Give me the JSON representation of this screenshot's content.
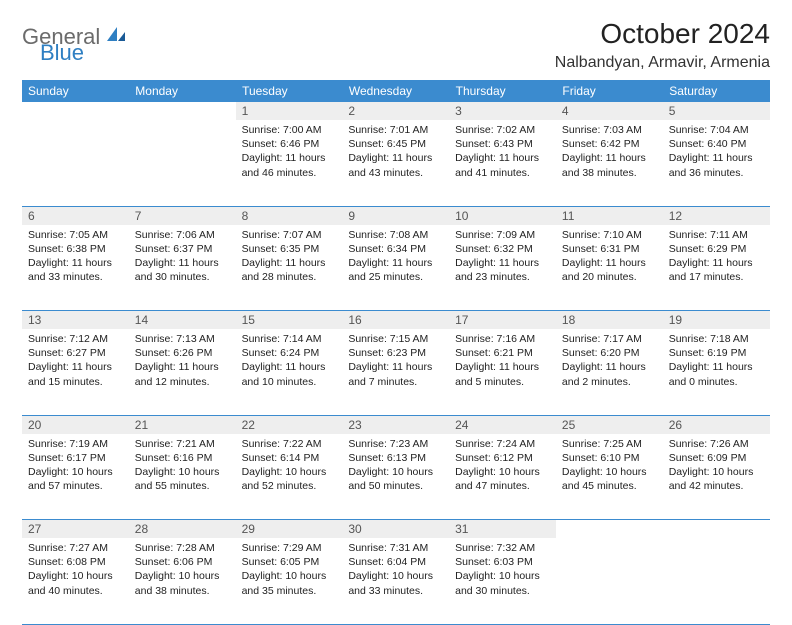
{
  "logo": {
    "gray": "General",
    "blue": "Blue"
  },
  "title": "October 2024",
  "location": "Nalbandyan, Armavir, Armenia",
  "colors": {
    "header_bg": "#3b8bcf",
    "header_text": "#ffffff",
    "daynum_bg": "#eeeeee",
    "daynum_text": "#555555",
    "border": "#3b8bcf",
    "logo_gray": "#6b6b6b",
    "logo_blue": "#2f7fc2"
  },
  "day_headers": [
    "Sunday",
    "Monday",
    "Tuesday",
    "Wednesday",
    "Thursday",
    "Friday",
    "Saturday"
  ],
  "weeks": [
    [
      null,
      null,
      {
        "n": "1",
        "sr": "7:00 AM",
        "ss": "6:46 PM",
        "dl": "11 hours and 46 minutes."
      },
      {
        "n": "2",
        "sr": "7:01 AM",
        "ss": "6:45 PM",
        "dl": "11 hours and 43 minutes."
      },
      {
        "n": "3",
        "sr": "7:02 AM",
        "ss": "6:43 PM",
        "dl": "11 hours and 41 minutes."
      },
      {
        "n": "4",
        "sr": "7:03 AM",
        "ss": "6:42 PM",
        "dl": "11 hours and 38 minutes."
      },
      {
        "n": "5",
        "sr": "7:04 AM",
        "ss": "6:40 PM",
        "dl": "11 hours and 36 minutes."
      }
    ],
    [
      {
        "n": "6",
        "sr": "7:05 AM",
        "ss": "6:38 PM",
        "dl": "11 hours and 33 minutes."
      },
      {
        "n": "7",
        "sr": "7:06 AM",
        "ss": "6:37 PM",
        "dl": "11 hours and 30 minutes."
      },
      {
        "n": "8",
        "sr": "7:07 AM",
        "ss": "6:35 PM",
        "dl": "11 hours and 28 minutes."
      },
      {
        "n": "9",
        "sr": "7:08 AM",
        "ss": "6:34 PM",
        "dl": "11 hours and 25 minutes."
      },
      {
        "n": "10",
        "sr": "7:09 AM",
        "ss": "6:32 PM",
        "dl": "11 hours and 23 minutes."
      },
      {
        "n": "11",
        "sr": "7:10 AM",
        "ss": "6:31 PM",
        "dl": "11 hours and 20 minutes."
      },
      {
        "n": "12",
        "sr": "7:11 AM",
        "ss": "6:29 PM",
        "dl": "11 hours and 17 minutes."
      }
    ],
    [
      {
        "n": "13",
        "sr": "7:12 AM",
        "ss": "6:27 PM",
        "dl": "11 hours and 15 minutes."
      },
      {
        "n": "14",
        "sr": "7:13 AM",
        "ss": "6:26 PM",
        "dl": "11 hours and 12 minutes."
      },
      {
        "n": "15",
        "sr": "7:14 AM",
        "ss": "6:24 PM",
        "dl": "11 hours and 10 minutes."
      },
      {
        "n": "16",
        "sr": "7:15 AM",
        "ss": "6:23 PM",
        "dl": "11 hours and 7 minutes."
      },
      {
        "n": "17",
        "sr": "7:16 AM",
        "ss": "6:21 PM",
        "dl": "11 hours and 5 minutes."
      },
      {
        "n": "18",
        "sr": "7:17 AM",
        "ss": "6:20 PM",
        "dl": "11 hours and 2 minutes."
      },
      {
        "n": "19",
        "sr": "7:18 AM",
        "ss": "6:19 PM",
        "dl": "11 hours and 0 minutes."
      }
    ],
    [
      {
        "n": "20",
        "sr": "7:19 AM",
        "ss": "6:17 PM",
        "dl": "10 hours and 57 minutes."
      },
      {
        "n": "21",
        "sr": "7:21 AM",
        "ss": "6:16 PM",
        "dl": "10 hours and 55 minutes."
      },
      {
        "n": "22",
        "sr": "7:22 AM",
        "ss": "6:14 PM",
        "dl": "10 hours and 52 minutes."
      },
      {
        "n": "23",
        "sr": "7:23 AM",
        "ss": "6:13 PM",
        "dl": "10 hours and 50 minutes."
      },
      {
        "n": "24",
        "sr": "7:24 AM",
        "ss": "6:12 PM",
        "dl": "10 hours and 47 minutes."
      },
      {
        "n": "25",
        "sr": "7:25 AM",
        "ss": "6:10 PM",
        "dl": "10 hours and 45 minutes."
      },
      {
        "n": "26",
        "sr": "7:26 AM",
        "ss": "6:09 PM",
        "dl": "10 hours and 42 minutes."
      }
    ],
    [
      {
        "n": "27",
        "sr": "7:27 AM",
        "ss": "6:08 PM",
        "dl": "10 hours and 40 minutes."
      },
      {
        "n": "28",
        "sr": "7:28 AM",
        "ss": "6:06 PM",
        "dl": "10 hours and 38 minutes."
      },
      {
        "n": "29",
        "sr": "7:29 AM",
        "ss": "6:05 PM",
        "dl": "10 hours and 35 minutes."
      },
      {
        "n": "30",
        "sr": "7:31 AM",
        "ss": "6:04 PM",
        "dl": "10 hours and 33 minutes."
      },
      {
        "n": "31",
        "sr": "7:32 AM",
        "ss": "6:03 PM",
        "dl": "10 hours and 30 minutes."
      },
      null,
      null
    ]
  ],
  "labels": {
    "sunrise": "Sunrise:",
    "sunset": "Sunset:",
    "daylight": "Daylight:"
  }
}
